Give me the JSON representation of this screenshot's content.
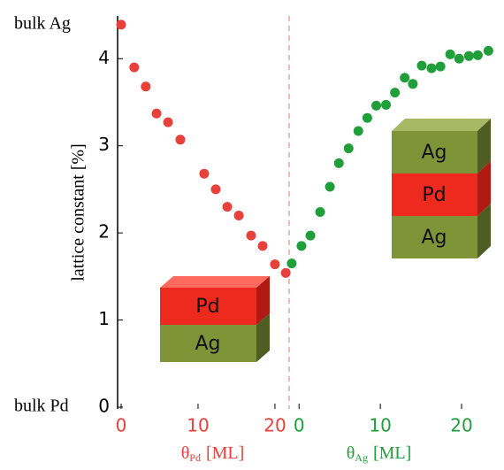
{
  "chart_data": {
    "type": "scatter",
    "ylabel": "lattice constant [%]",
    "ylim": [
      0,
      4.47
    ],
    "yticks": [
      0,
      1,
      2,
      3,
      4
    ],
    "bulk_labels": [
      {
        "value": 0,
        "label": "bulk Pd"
      },
      {
        "value": 4.39,
        "label": "bulk Ag"
      }
    ],
    "panels": [
      {
        "xlabel": {
          "symbol": "θ",
          "sub": "Pd",
          "unit": "[ML]"
        },
        "xlim": [
          0,
          21.5
        ],
        "xticks": [
          0,
          10,
          20
        ],
        "color": "#e8403a",
        "x": [
          0,
          1.7,
          3.2,
          4.6,
          6.1,
          7.7,
          10.8,
          12.3,
          13.8,
          15.3,
          16.9,
          18.4,
          20.0,
          21.4
        ],
        "values": [
          4.39,
          3.9,
          3.68,
          3.37,
          3.27,
          3.07,
          2.68,
          2.5,
          2.3,
          2.2,
          1.97,
          1.85,
          1.64,
          1.54
        ]
      },
      {
        "xlabel": {
          "symbol": "θ",
          "sub": "Ag",
          "unit": "[ML]"
        },
        "xlim": [
          -1,
          25
        ],
        "xticks": [
          0,
          10,
          20
        ],
        "color": "#1f9e3a",
        "x": [
          -0.9,
          0.3,
          1.4,
          2.6,
          3.8,
          4.9,
          6.1,
          7.3,
          8.4,
          9.5,
          10.7,
          11.8,
          13.0,
          14.0,
          15.1,
          16.3,
          17.4,
          18.6,
          19.7,
          20.9,
          22.0,
          23.3
        ],
        "values": [
          1.65,
          1.85,
          1.97,
          2.24,
          2.53,
          2.8,
          2.97,
          3.17,
          3.32,
          3.46,
          3.47,
          3.61,
          3.78,
          3.71,
          3.92,
          3.89,
          3.91,
          4.05,
          4.0,
          4.03,
          4.04,
          4.09
        ]
      }
    ],
    "stacks": [
      [
        "Pd",
        "Ag"
      ],
      [
        "Ag",
        "Pd",
        "Ag"
      ]
    ]
  }
}
